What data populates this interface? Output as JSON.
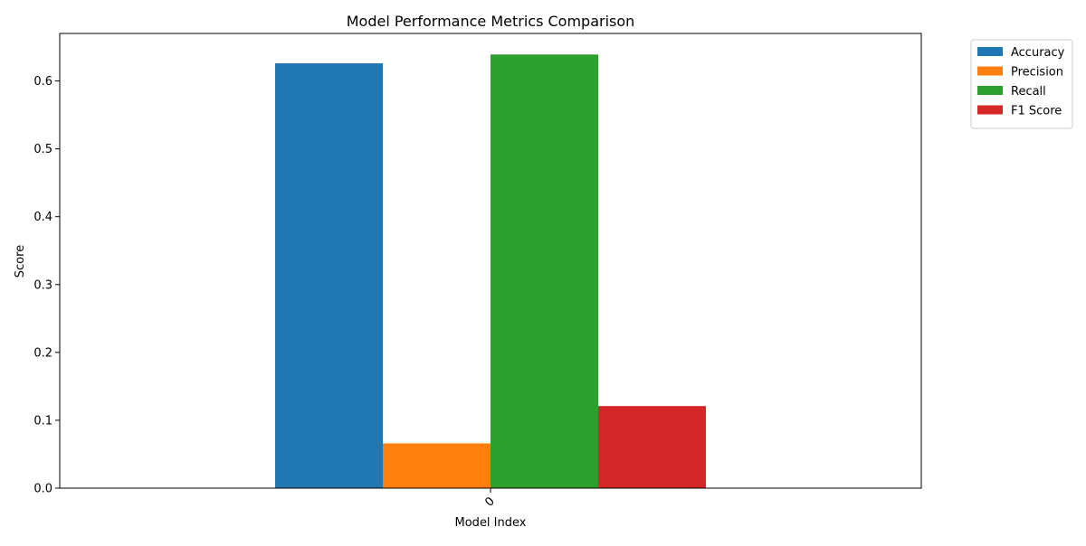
{
  "chart_data": {
    "type": "bar",
    "title": "Model Performance Metrics Comparison",
    "xlabel": "Model Index",
    "ylabel": "Score",
    "categories": [
      "0"
    ],
    "ylim": [
      0,
      0.67
    ],
    "yticks": [
      0.0,
      0.1,
      0.2,
      0.3,
      0.4,
      0.5,
      0.6
    ],
    "ytick_labels": [
      "0.0",
      "0.1",
      "0.2",
      "0.3",
      "0.4",
      "0.5",
      "0.6"
    ],
    "xtick_rotation_deg": 45,
    "grid": false,
    "legend_position": "outside-top-right",
    "series": [
      {
        "name": "Accuracy",
        "values": [
          0.626
        ],
        "color": "#1f77b4"
      },
      {
        "name": "Precision",
        "values": [
          0.066
        ],
        "color": "#ff7f0e"
      },
      {
        "name": "Recall",
        "values": [
          0.639
        ],
        "color": "#2ca02c"
      },
      {
        "name": "F1 Score",
        "values": [
          0.121
        ],
        "color": "#d62728"
      }
    ]
  }
}
